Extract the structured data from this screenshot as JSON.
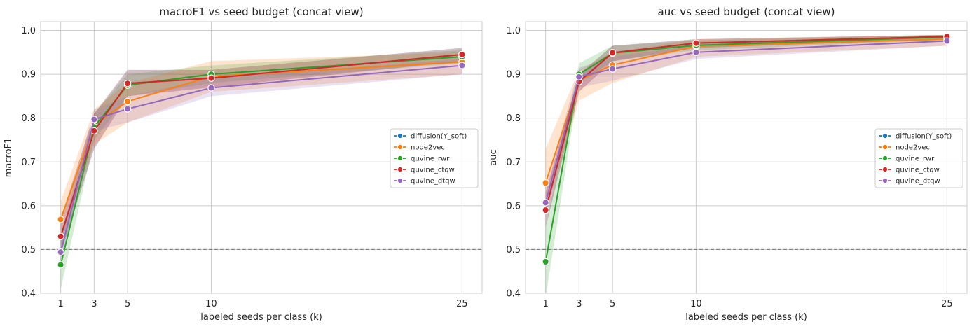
{
  "colors": {
    "diffusion(Y_soft)": "#1f77b4",
    "node2vec": "#ff7f0e",
    "quvine_rwr": "#2ca02c",
    "quvine_ctqw": "#d62728",
    "quvine_dtqw": "#9467bd",
    "grid": "#cccccc",
    "baseline": "#808080"
  },
  "chart_data": [
    {
      "type": "line",
      "title": "macroF1 vs seed budget (concat view)",
      "xlabel": "labeled seeds per class (k)",
      "ylabel": "macroF1",
      "x": [
        1,
        3,
        5,
        10,
        25
      ],
      "xticks": [
        1,
        3,
        5,
        10,
        25
      ],
      "xlim": [
        -0.2,
        26.2
      ],
      "ylim": [
        0.4,
        1.02
      ],
      "yticks": [
        "0.4",
        "0.5",
        "0.6",
        "0.7",
        "0.8",
        "0.9",
        "1.0"
      ],
      "baseline": 0.5,
      "grid": true,
      "legend_position": "center-right",
      "series": [
        {
          "name": "diffusion(Y_soft)",
          "values": [
            0.53,
            0.771,
            0.879,
            0.891,
            0.945
          ],
          "lower": [
            0.49,
            0.73,
            0.85,
            0.87,
            0.93
          ],
          "upper": [
            0.57,
            0.81,
            0.91,
            0.91,
            0.96
          ]
        },
        {
          "name": "node2vec",
          "values": [
            0.569,
            0.785,
            0.838,
            0.895,
            0.928
          ],
          "lower": [
            0.52,
            0.74,
            0.79,
            0.86,
            0.9
          ],
          "upper": [
            0.61,
            0.82,
            0.88,
            0.93,
            0.95
          ]
        },
        {
          "name": "quvine_rwr",
          "values": [
            0.465,
            0.78,
            0.875,
            0.9,
            0.94
          ],
          "lower": [
            0.41,
            0.75,
            0.85,
            0.88,
            0.925
          ],
          "upper": [
            0.52,
            0.81,
            0.9,
            0.92,
            0.955
          ]
        },
        {
          "name": "quvine_ctqw",
          "values": [
            0.53,
            0.771,
            0.879,
            0.891,
            0.945
          ],
          "lower": [
            0.49,
            0.73,
            0.85,
            0.87,
            0.93
          ],
          "upper": [
            0.57,
            0.81,
            0.91,
            0.91,
            0.96
          ]
        },
        {
          "name": "quvine_dtqw",
          "values": [
            0.494,
            0.797,
            0.821,
            0.869,
            0.92
          ],
          "lower": [
            0.46,
            0.77,
            0.79,
            0.85,
            0.9
          ],
          "upper": [
            0.53,
            0.82,
            0.85,
            0.89,
            0.935
          ]
        }
      ]
    },
    {
      "type": "line",
      "title": "auc vs seed budget (concat view)",
      "xlabel": "labeled seeds per class (k)",
      "ylabel": "auc",
      "x": [
        1,
        3,
        5,
        10,
        25
      ],
      "xticks": [
        1,
        3,
        5,
        10,
        25
      ],
      "xlim": [
        -0.2,
        26.2
      ],
      "ylim": [
        0.4,
        1.02
      ],
      "yticks": [
        "0.4",
        "0.5",
        "0.6",
        "0.7",
        "0.8",
        "0.9",
        "1.0"
      ],
      "baseline": 0.5,
      "grid": true,
      "legend_position": "center-right",
      "series": [
        {
          "name": "diffusion(Y_soft)",
          "values": [
            0.59,
            0.883,
            0.949,
            0.971,
            0.986
          ],
          "lower": [
            0.55,
            0.86,
            0.93,
            0.96,
            0.98
          ],
          "upper": [
            0.63,
            0.9,
            0.965,
            0.98,
            0.99
          ]
        },
        {
          "name": "node2vec",
          "values": [
            0.652,
            0.886,
            0.921,
            0.964,
            0.98
          ],
          "lower": [
            0.58,
            0.84,
            0.88,
            0.94,
            0.965
          ],
          "upper": [
            0.73,
            0.91,
            0.95,
            0.98,
            0.99
          ]
        },
        {
          "name": "quvine_rwr",
          "values": [
            0.472,
            0.9,
            0.948,
            0.966,
            0.985
          ],
          "lower": [
            0.39,
            0.88,
            0.93,
            0.955,
            0.978
          ],
          "upper": [
            0.55,
            0.925,
            0.965,
            0.977,
            0.99
          ]
        },
        {
          "name": "quvine_ctqw",
          "values": [
            0.59,
            0.883,
            0.949,
            0.971,
            0.986
          ],
          "lower": [
            0.55,
            0.86,
            0.93,
            0.96,
            0.98
          ],
          "upper": [
            0.63,
            0.9,
            0.965,
            0.98,
            0.99
          ]
        },
        {
          "name": "quvine_dtqw",
          "values": [
            0.607,
            0.894,
            0.912,
            0.95,
            0.976
          ],
          "lower": [
            0.58,
            0.87,
            0.885,
            0.935,
            0.965
          ],
          "upper": [
            0.64,
            0.915,
            0.94,
            0.965,
            0.985
          ]
        }
      ]
    }
  ]
}
